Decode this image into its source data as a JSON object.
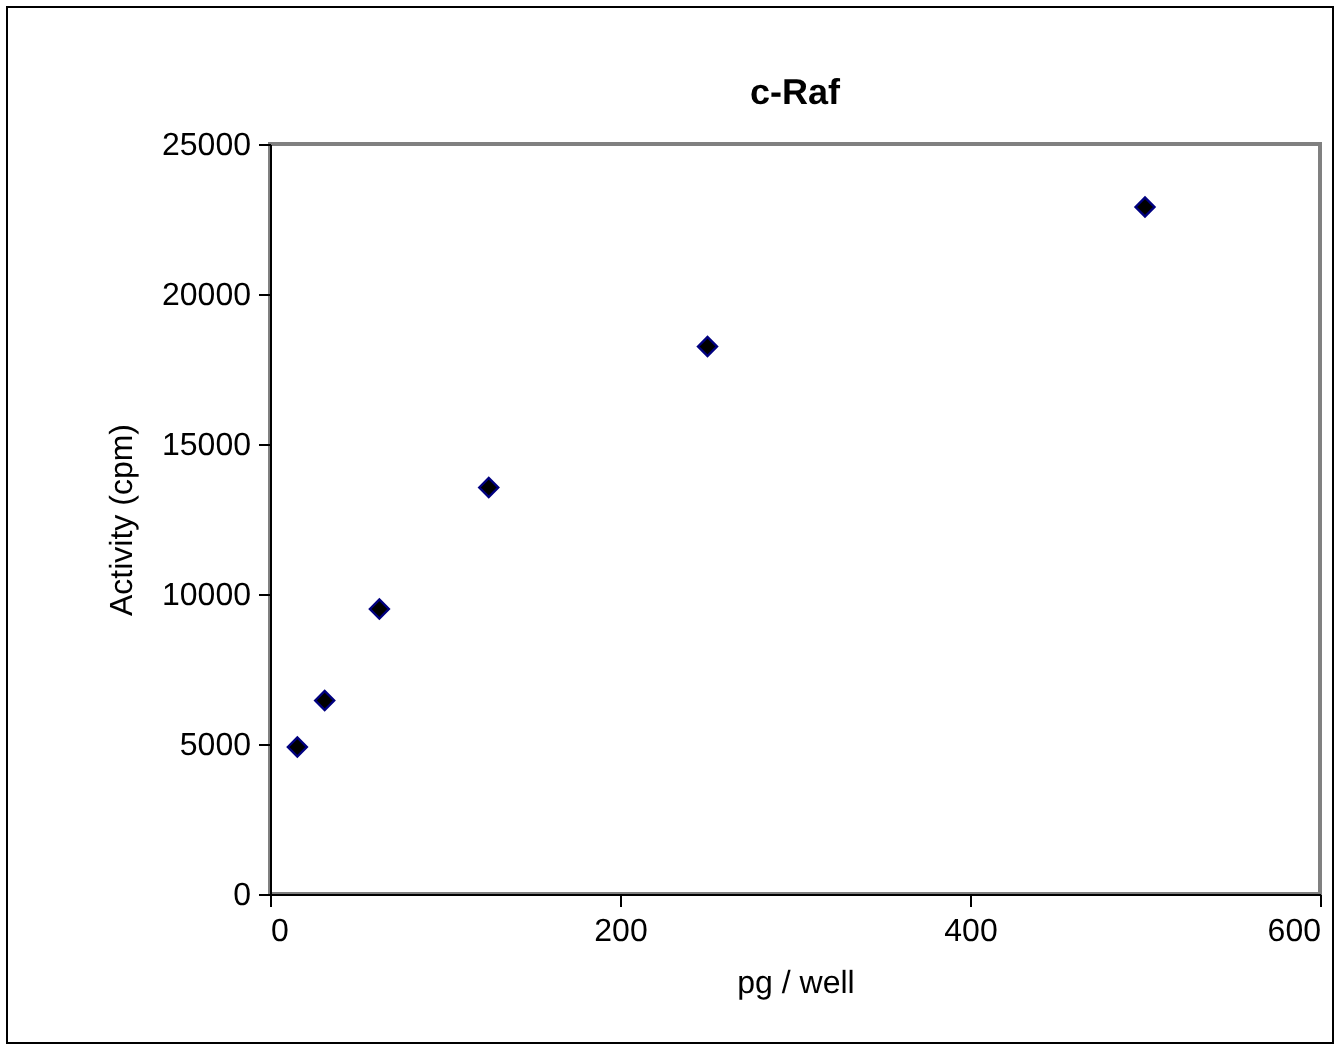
{
  "chart_data": {
    "type": "scatter",
    "title": "c-Raf",
    "xlabel": "pg / well",
    "ylabel": "Activity (cpm)",
    "x": [
      15.625,
      31.25,
      62.5,
      125,
      250,
      500
    ],
    "series": [
      {
        "color": "#000000",
        "values": [
          4900,
          6450,
          9500,
          13550,
          18250,
          22900
        ]
      }
    ],
    "xlim": [
      0,
      600
    ],
    "xticks": [
      0,
      200,
      400,
      600
    ],
    "ylim": [
      0,
      25000
    ],
    "yticks": [
      0,
      5000,
      10000,
      15000,
      20000,
      25000
    ],
    "grid": false,
    "marker": "diamond"
  }
}
